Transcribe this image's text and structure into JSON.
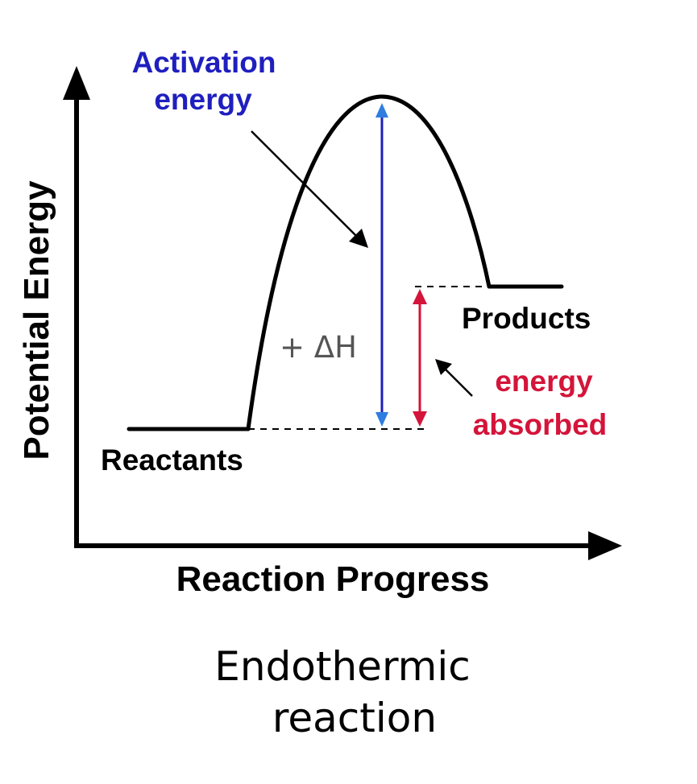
{
  "axes": {
    "y_label": "Potential Energy",
    "x_label": "Reaction Progress"
  },
  "labels": {
    "activation_line1": "Activation",
    "activation_line2": "energy",
    "reactants": "Reactants",
    "products": "Products",
    "delta_h": "+ ΔH",
    "absorbed_line1": "energy",
    "absorbed_line2": "absorbed"
  },
  "caption": {
    "line1": "Endothermic",
    "line2": "reaction"
  },
  "colors": {
    "axis": "#000000",
    "curve": "#000000",
    "activation": "#1f1fbf",
    "absorbed": "#d4143a",
    "delta_h": "#555555",
    "arrow_head_blue": "#2f7de1"
  }
}
